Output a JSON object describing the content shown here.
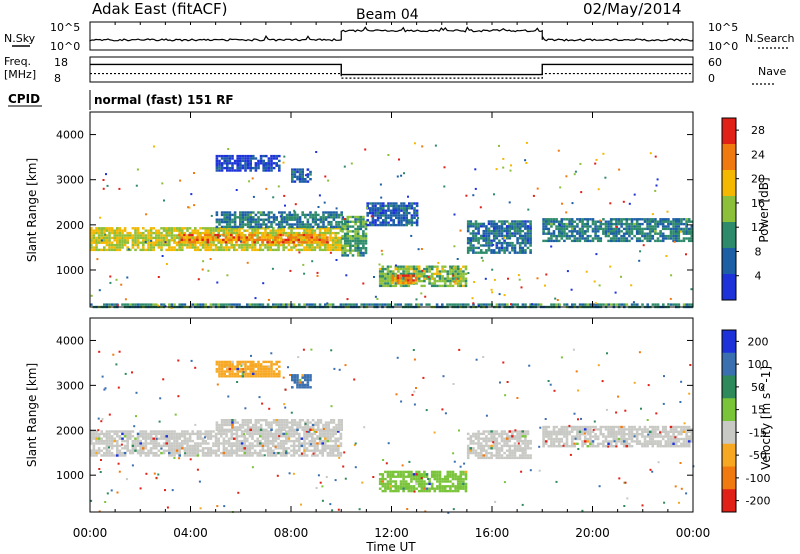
{
  "header": {
    "station": "Adak East (fitACF)",
    "beam": "Beam 04",
    "date": "02/May/2014"
  },
  "top_panel": {
    "left_label": "N.Sky",
    "left_ticks": [
      "10^5",
      "10^0"
    ],
    "right_ticks": [
      "10^5",
      "10^0"
    ],
    "right_label": "N.Search",
    "level_segments": [
      {
        "start": "00:00",
        "end": "10:00",
        "level": 0.35
      },
      {
        "start": "10:00",
        "end": "18:00",
        "level": 0.7
      },
      {
        "start": "18:00",
        "end": "24:00",
        "level": 0.35
      }
    ]
  },
  "freq_panel": {
    "label": "Freq.",
    "unit": "[MHz]",
    "left_ticks": [
      "18",
      "8"
    ],
    "right_ticks": [
      "60",
      "0"
    ],
    "right_label": "Nave",
    "level_segments": [
      {
        "start": "00:00",
        "end": "10:00",
        "level": 0.72
      },
      {
        "start": "10:00",
        "end": "18:00",
        "level": 0.28
      },
      {
        "start": "18:00",
        "end": "24:00",
        "level": 0.72
      }
    ]
  },
  "cpid": {
    "label": "CPID",
    "value": "normal (fast) 151 RF"
  },
  "chart_data": [
    {
      "type": "heatmap",
      "quantity": "Power",
      "ylabel": "Slant Range [km]",
      "ylim": [
        180,
        4500
      ],
      "yticks": [
        1000,
        2000,
        3000,
        4000
      ],
      "xlim": [
        "00:00",
        "24:00"
      ],
      "colorbar": {
        "label": "Power [dB]",
        "ticks": [
          4,
          8,
          12,
          16,
          20,
          24,
          28
        ],
        "range": [
          0,
          30
        ],
        "colors": [
          "#1d33d9",
          "#1d5fa5",
          "#2d8a6a",
          "#8cc03a",
          "#f4b800",
          "#f07a10",
          "#e12018"
        ]
      },
      "regions": [
        {
          "t0": 0.0,
          "t1": 10.0,
          "r0": 1450,
          "r1": 1950,
          "level": 17,
          "note": "main band"
        },
        {
          "t0": 3.5,
          "t1": 9.5,
          "r0": 1600,
          "r1": 1800,
          "level": 23,
          "note": "core"
        },
        {
          "t0": 5.0,
          "t1": 10.0,
          "r0": 1950,
          "r1": 2300,
          "level": 9,
          "note": "upper edge"
        },
        {
          "t0": 10.0,
          "t1": 11.0,
          "r0": 1300,
          "r1": 2200,
          "level": 12,
          "note": "transition"
        },
        {
          "t0": 11.0,
          "t1": 13.0,
          "r0": 2000,
          "r1": 2500,
          "level": 6,
          "note": "rising streak"
        },
        {
          "t0": 11.5,
          "t1": 15.0,
          "r0": 650,
          "r1": 1100,
          "level": 14,
          "note": "low band"
        },
        {
          "t0": 12.0,
          "t1": 13.0,
          "r0": 700,
          "r1": 900,
          "level": 24,
          "note": "low band core"
        },
        {
          "t0": 15.0,
          "t1": 17.5,
          "r0": 1400,
          "r1": 2100,
          "level": 8,
          "note": "descending band"
        },
        {
          "t0": 18.0,
          "t1": 24.0,
          "r0": 1650,
          "r1": 2150,
          "level": 9,
          "note": "evening band"
        },
        {
          "t0": 5.0,
          "t1": 7.5,
          "r0": 3200,
          "r1": 3550,
          "level": 4,
          "note": "far range patch"
        },
        {
          "t0": 8.0,
          "t1": 8.8,
          "r0": 2950,
          "r1": 3250,
          "level": 6,
          "note": "far patch 2"
        },
        {
          "t0": 0.0,
          "t1": 24.0,
          "r0": 190,
          "r1": 260,
          "level": 10,
          "note": "ground scatter"
        }
      ]
    },
    {
      "type": "heatmap",
      "quantity": "Velocity",
      "ylabel": "Slant Range [km]",
      "ylim": [
        180,
        4500
      ],
      "yticks": [
        1000,
        2000,
        3000,
        4000
      ],
      "xlim": [
        "00:00",
        "24:00"
      ],
      "xticks": [
        "00:00",
        "04:00",
        "08:00",
        "12:00",
        "16:00",
        "20:00",
        "00:00"
      ],
      "xlabel": "Time UT",
      "colorbar": {
        "label": "Velocity [m s^-1]",
        "ticks": [
          200,
          100,
          50,
          15,
          -15,
          -50,
          -100,
          -200
        ],
        "colors": [
          "#1d33d9",
          "#3a6fb0",
          "#2e8a5a",
          "#7ac43a",
          "#c8c8c4",
          "#f7a823",
          "#f07a10",
          "#e12018"
        ]
      },
      "regions": [
        {
          "t0": 0.0,
          "t1": 10.0,
          "r0": 1450,
          "r1": 2000,
          "level": 0,
          "note": "main band"
        },
        {
          "t0": 5.0,
          "t1": 10.0,
          "r0": 2000,
          "r1": 2250,
          "level": 0,
          "note": "upper"
        },
        {
          "t0": 11.5,
          "t1": 15.0,
          "r0": 650,
          "r1": 1100,
          "level": 30,
          "note": "low band"
        },
        {
          "t0": 15.0,
          "t1": 17.5,
          "r0": 1400,
          "r1": 2000,
          "level": 0,
          "note": "descending"
        },
        {
          "t0": 18.0,
          "t1": 24.0,
          "r0": 1650,
          "r1": 2100,
          "level": 0,
          "note": "evening band"
        },
        {
          "t0": 5.0,
          "t1": 7.5,
          "r0": 3200,
          "r1": 3550,
          "level": -40,
          "note": "far patch"
        },
        {
          "t0": 8.0,
          "t1": 8.8,
          "r0": 2950,
          "r1": 3250,
          "level": 150,
          "note": "far patch 2"
        }
      ]
    }
  ]
}
